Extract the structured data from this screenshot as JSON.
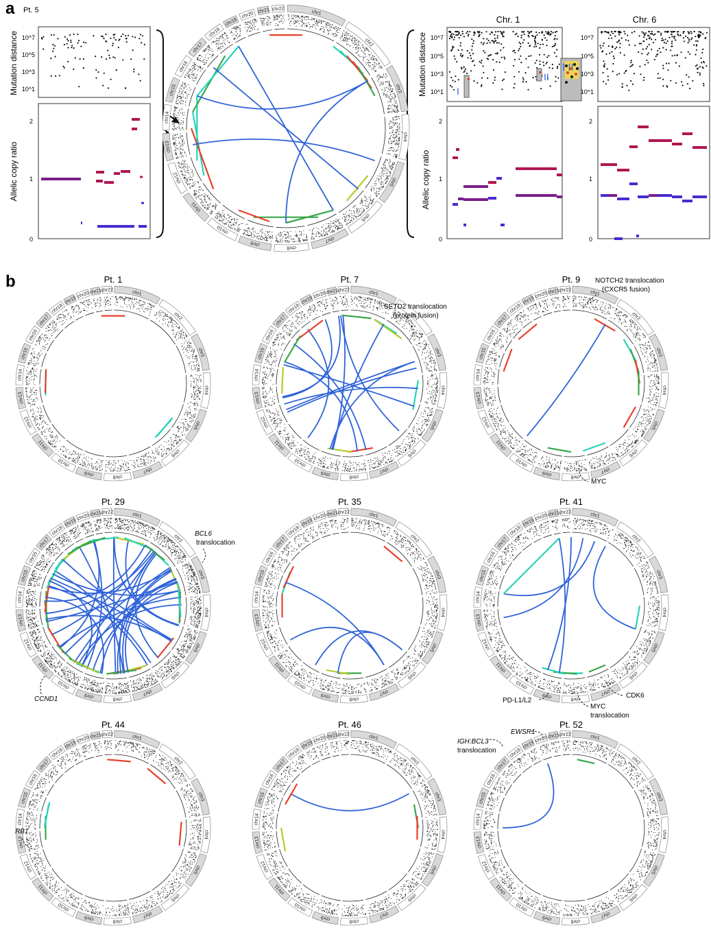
{
  "panel_a": {
    "letter": "a",
    "patient": "Pt. 5",
    "ylabel_mut": "Mutation distance",
    "ylabel_cn": "Allelic copy ratio",
    "mut_ticks": [
      "10^7",
      "10^5",
      "10^3",
      "10^1"
    ],
    "cn_ticks": [
      "2",
      "1",
      "0"
    ],
    "chr1_title": "Chr. 1",
    "chr6_title": "Chr. 6",
    "kataegis_labels": [
      "I",
      "II",
      "I II"
    ]
  },
  "panel_b": {
    "letter": "b",
    "patients": [
      "Pt. 1",
      "Pt. 7",
      "Pt. 9",
      "Pt. 29",
      "Pt. 35",
      "Pt. 41",
      "Pt. 44",
      "Pt. 46",
      "Pt. 52"
    ],
    "annotations": {
      "pt7": [
        "SETD2 translocation",
        "(protein fusion)"
      ],
      "pt9_top": [
        "NOTCH2 translocation",
        "(CXCR5 fusion)"
      ],
      "pt9_bottom": [
        "MYC"
      ],
      "pt29_top": [
        "BCL6",
        "translocation"
      ],
      "pt29_bottom": [
        "CCND1"
      ],
      "pt41_cdk6": [
        "CDK6"
      ],
      "pt41_pdl1": [
        "PD-L1/L2"
      ],
      "pt41_myc": [
        "MYC",
        "translocation"
      ],
      "pt44": [
        "RB1"
      ],
      "pt52_ewsr1": [
        "EWSR1"
      ],
      "pt52_igh": [
        "IGH:BCL3",
        "translocation"
      ]
    }
  },
  "chromosomes": [
    "chr1",
    "chr2",
    "chr3",
    "chr4",
    "chr5",
    "chr6",
    "chr7",
    "chr8",
    "chr9",
    "chr10",
    "chr11",
    "chr12",
    "chr13",
    "chr14",
    "chr15",
    "chr16",
    "chr17",
    "chr18",
    "chr19",
    "chr20",
    "chr21",
    "chr22"
  ],
  "colors": {
    "blue": "#2f63d8",
    "red": "#e8402a",
    "teal": "#27d3b9",
    "green": "#3aa64b",
    "olive": "#b5cc2c",
    "magenta": "#b01653",
    "purple": "#7a1e8a",
    "indigo": "#4a2bd0"
  }
}
